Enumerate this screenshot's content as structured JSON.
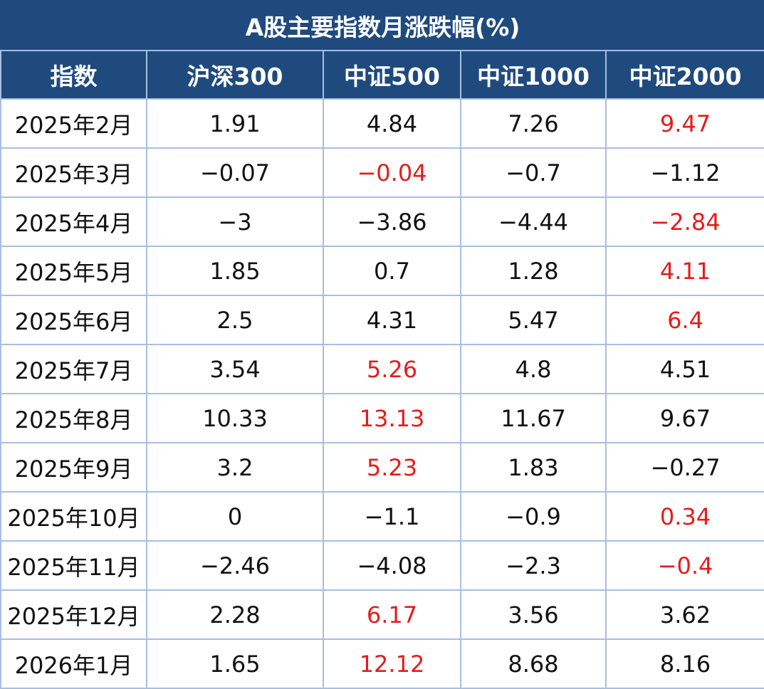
{
  "chart_data": {
    "type": "table",
    "title": "A股主要指数月涨跌幅(%)",
    "columns": [
      "指数",
      "沪深300",
      "中证500",
      "中证1000",
      "中证2000"
    ],
    "highlight_color": "#e51c1c",
    "header_color": "#1f4a7e",
    "rows": [
      {
        "month": "2025年2月",
        "values": [
          "1.91",
          "4.84",
          "7.26",
          "9.47"
        ],
        "highlight": 3
      },
      {
        "month": "2025年3月",
        "values": [
          "−0.07",
          "−0.04",
          "−0.7",
          "−1.12"
        ],
        "highlight": 1
      },
      {
        "month": "2025年4月",
        "values": [
          "−3",
          "−3.86",
          "−4.44",
          "−2.84"
        ],
        "highlight": 3
      },
      {
        "month": "2025年5月",
        "values": [
          "1.85",
          "0.7",
          "1.28",
          "4.11"
        ],
        "highlight": 3
      },
      {
        "month": "2025年6月",
        "values": [
          "2.5",
          "4.31",
          "5.47",
          "6.4"
        ],
        "highlight": 3
      },
      {
        "month": "2025年7月",
        "values": [
          "3.54",
          "5.26",
          "4.8",
          "4.51"
        ],
        "highlight": 1
      },
      {
        "month": "2025年8月",
        "values": [
          "10.33",
          "13.13",
          "11.67",
          "9.67"
        ],
        "highlight": 1
      },
      {
        "month": "2025年9月",
        "values": [
          "3.2",
          "5.23",
          "1.83",
          "−0.27"
        ],
        "highlight": 1
      },
      {
        "month": "2025年10月",
        "values": [
          "0",
          "−1.1",
          "−0.9",
          "0.34"
        ],
        "highlight": 3
      },
      {
        "month": "2025年11月",
        "values": [
          "−2.46",
          "−4.08",
          "−2.3",
          "−0.4"
        ],
        "highlight": 3
      },
      {
        "month": "2025年12月",
        "values": [
          "2.28",
          "6.17",
          "3.56",
          "3.62"
        ],
        "highlight": 1
      },
      {
        "month": "2026年1月",
        "values": [
          "1.65",
          "12.12",
          "8.68",
          "8.16"
        ],
        "highlight": 1
      }
    ]
  }
}
